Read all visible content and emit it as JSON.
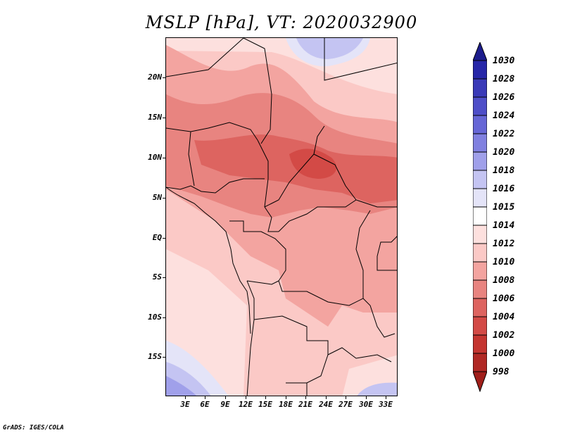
{
  "title": "MSLP [hPa], VT: 2020032900",
  "credit": "GrADS: IGES/COLA",
  "lat_labels": [
    "20N",
    "15N",
    "10N",
    "5N",
    "EQ",
    "5S",
    "10S",
    "15S"
  ],
  "lon_labels": [
    "3E",
    "6E",
    "9E",
    "12E",
    "15E",
    "18E",
    "21E",
    "24E",
    "27E",
    "30E",
    "33E"
  ],
  "colorbar": {
    "labels": [
      "1030",
      "1028",
      "1026",
      "1024",
      "1022",
      "1020",
      "1018",
      "1016",
      "1015",
      "1014",
      "1012",
      "1010",
      "1008",
      "1006",
      "1004",
      "1002",
      "1000",
      "998"
    ],
    "colors": [
      "#1c1c8c",
      "#2626a8",
      "#3a3ab8",
      "#4e4ec8",
      "#6666d6",
      "#8080e0",
      "#a0a0ea",
      "#c4c4f2",
      "#e4e4f8",
      "#ffffff",
      "#fde0de",
      "#fbc9c6",
      "#f3a4a0",
      "#e88480",
      "#dd6460",
      "#d34a46",
      "#c43530",
      "#b02824",
      "#a01e1a"
    ]
  },
  "icons": [
    "colorbar-top-arrow-icon",
    "colorbar-bottom-arrow-icon"
  ]
}
